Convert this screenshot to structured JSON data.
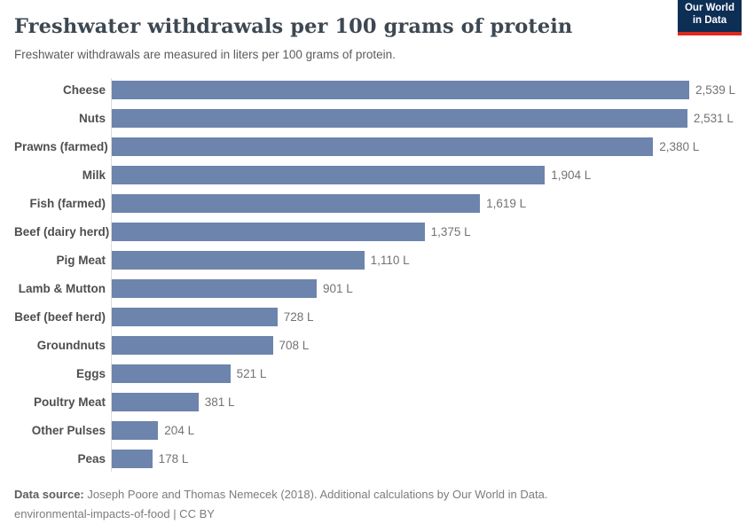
{
  "header": {
    "title": "Freshwater withdrawals per 100 grams of protein",
    "subtitle": "Freshwater withdrawals are measured in liters per 100 grams of protein.",
    "logo": {
      "line1": "Our World",
      "line2": "in Data"
    }
  },
  "chart_data": {
    "type": "bar",
    "orientation": "horizontal",
    "title": "Freshwater withdrawals per 100 grams of protein",
    "xlabel": "",
    "ylabel": "",
    "unit": "liters per 100 grams of protein",
    "grid": false,
    "legend": false,
    "xlim": [
      0,
      2539
    ],
    "categories": [
      "Cheese",
      "Nuts",
      "Prawns (farmed)",
      "Milk",
      "Fish (farmed)",
      "Beef (dairy herd)",
      "Pig Meat",
      "Lamb & Mutton",
      "Beef (beef herd)",
      "Groundnuts",
      "Eggs",
      "Poultry Meat",
      "Other Pulses",
      "Peas"
    ],
    "values": [
      2539,
      2531,
      2380,
      1904,
      1619,
      1375,
      1110,
      901,
      728,
      708,
      521,
      381,
      204,
      178
    ],
    "value_labels": [
      "2,539 L",
      "2,531 L",
      "2,380 L",
      "1,904 L",
      "1,619 L",
      "1,375 L",
      "1,110 L",
      "901 L",
      "728 L",
      "708 L",
      "521 L",
      "381 L",
      "204 L",
      "178 L"
    ]
  },
  "footer": {
    "source_label": "Data source:",
    "source_text": " Joseph Poore and Thomas Nemecek (2018). Additional calculations by Our World in Data.",
    "line2": "environmental-impacts-of-food | CC BY"
  },
  "colors": {
    "bar": "#6d84ad",
    "logo_navy": "#0d2e55",
    "logo_red": "#dc2a1c",
    "axis_line": "#dcdcdc"
  }
}
